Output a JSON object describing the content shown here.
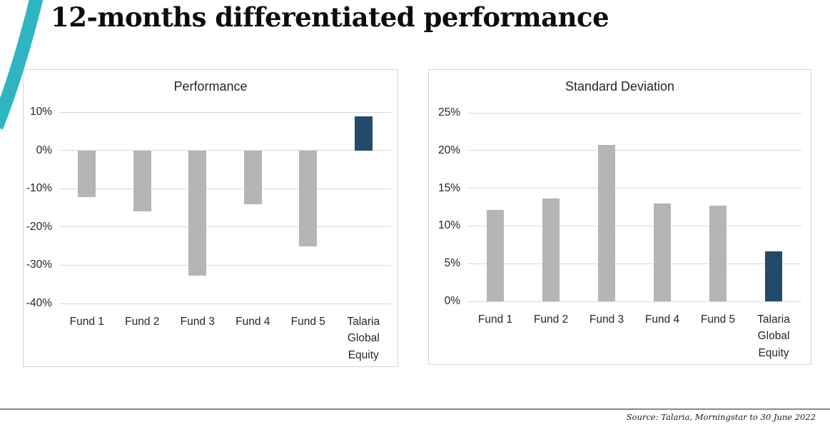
{
  "page": {
    "title": "12-months differentiated performance",
    "footer_source": "Source: Talaria, Morningstar to 30 June 2022"
  },
  "colors": {
    "accent_teal": "#2fb5c1",
    "bar_gray": "#b5b5b5",
    "bar_navy": "#234a6d",
    "gridline": "#d9d9d9",
    "chart_border": "#d6d6d6",
    "footer_line": "#8a8a8a"
  },
  "chart_data": [
    {
      "type": "bar",
      "title": "Performance",
      "categories": [
        "Fund 1",
        "Fund 2",
        "Fund 3",
        "Fund 4",
        "Fund 5",
        "Talaria Global Equity"
      ],
      "values": [
        -12.2,
        -16.0,
        -32.8,
        -14.0,
        -25.0,
        8.9
      ],
      "unit": "%",
      "ylim": [
        -40,
        10
      ],
      "yticks": [
        {
          "label": "10%",
          "value": 10
        },
        {
          "label": "0%",
          "value": 0
        },
        {
          "label": "-10%",
          "value": -10
        },
        {
          "label": "-20%",
          "value": -20
        },
        {
          "label": "-30%",
          "value": -30
        },
        {
          "label": "-40%",
          "value": -40
        }
      ],
      "grid": true,
      "legend": "none",
      "highlight_index": 5,
      "highlight_category": "Talaria Global Equity"
    },
    {
      "type": "bar",
      "title": "Standard Deviation",
      "categories": [
        "Fund 1",
        "Fund 2",
        "Fund 3",
        "Fund 4",
        "Fund 5",
        "Talaria Global Equity"
      ],
      "values": [
        12.1,
        13.6,
        20.7,
        13.0,
        12.7,
        6.6
      ],
      "unit": "%",
      "ylim": [
        0,
        25
      ],
      "yticks": [
        {
          "label": "25%",
          "value": 25
        },
        {
          "label": "20%",
          "value": 20
        },
        {
          "label": "15%",
          "value": 15
        },
        {
          "label": "10%",
          "value": 10
        },
        {
          "label": "5%",
          "value": 5
        },
        {
          "label": "0%",
          "value": 0
        }
      ],
      "grid": true,
      "legend": "none",
      "highlight_index": 5,
      "highlight_category": "Talaria Global Equity"
    }
  ]
}
